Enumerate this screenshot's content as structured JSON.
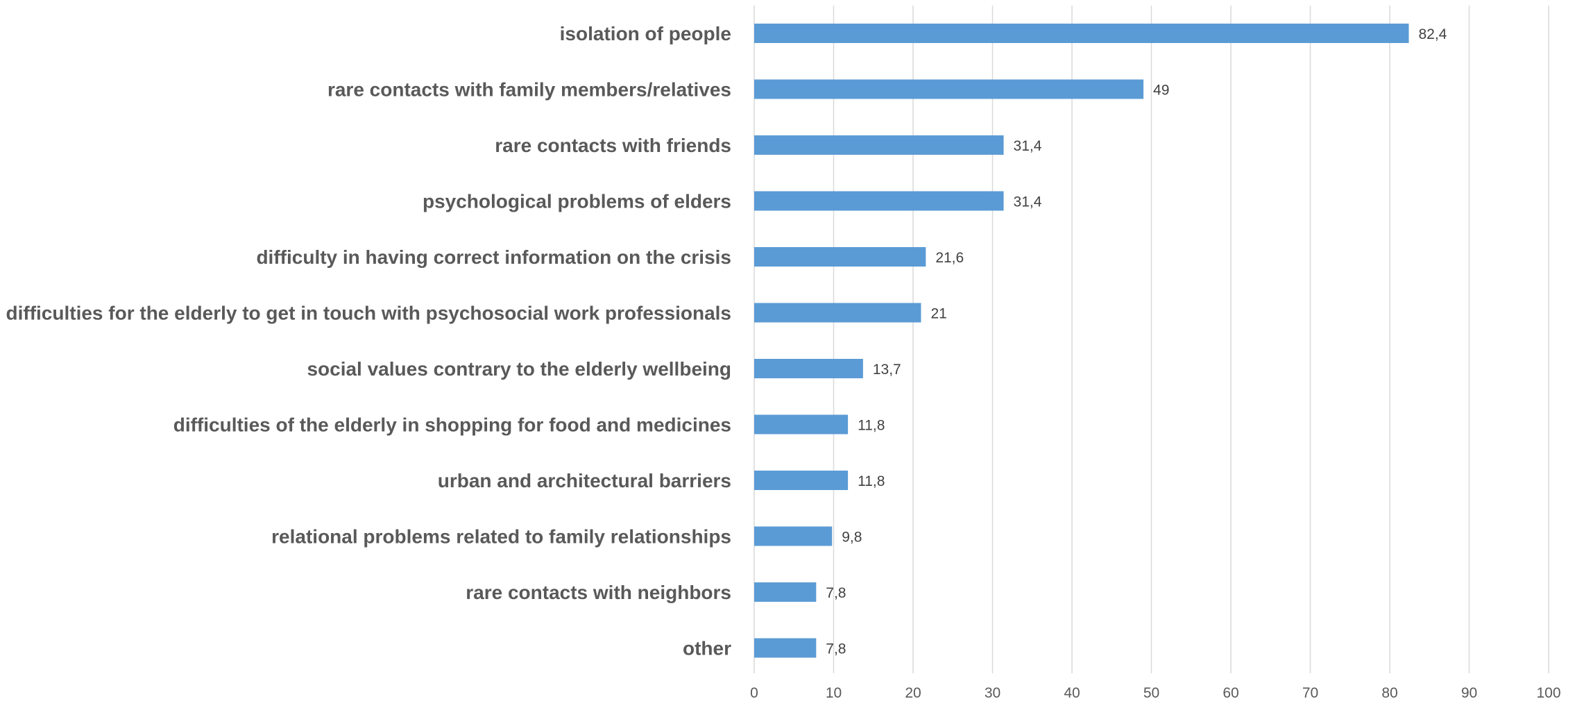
{
  "chart_data": {
    "type": "bar",
    "orientation": "horizontal",
    "title": "",
    "xlabel": "",
    "ylabel": "",
    "categories": [
      "isolation of people",
      "rare contacts with family members/relatives",
      "rare contacts with friends",
      "psychological problems of elders",
      "difficulty in having correct information on the crisis",
      "difficulties for the elderly to get in touch with psychosocial work professionals",
      "social values contrary to the elderly wellbeing",
      "difficulties of the elderly in shopping for food and medicines",
      "urban and architectural barriers",
      "relational problems related to family relationships",
      "rare contacts with neighbors",
      "other"
    ],
    "values": [
      82.4,
      49,
      31.4,
      31.4,
      21.6,
      21,
      13.7,
      11.8,
      11.8,
      9.8,
      7.8,
      7.8
    ],
    "value_labels": [
      "82,4",
      "49",
      "31,4",
      "31,4",
      "21,6",
      "21",
      "13,7",
      "11,8",
      "11,8",
      "9,8",
      "7,8",
      "7,8"
    ],
    "xlim": [
      0,
      100
    ],
    "x_ticks": [
      "0",
      "10",
      "20",
      "30",
      "40",
      "50",
      "60",
      "70",
      "80",
      "90",
      "100"
    ],
    "grid": "vertical",
    "legend": "none",
    "bar_color": "#5b9bd5"
  }
}
